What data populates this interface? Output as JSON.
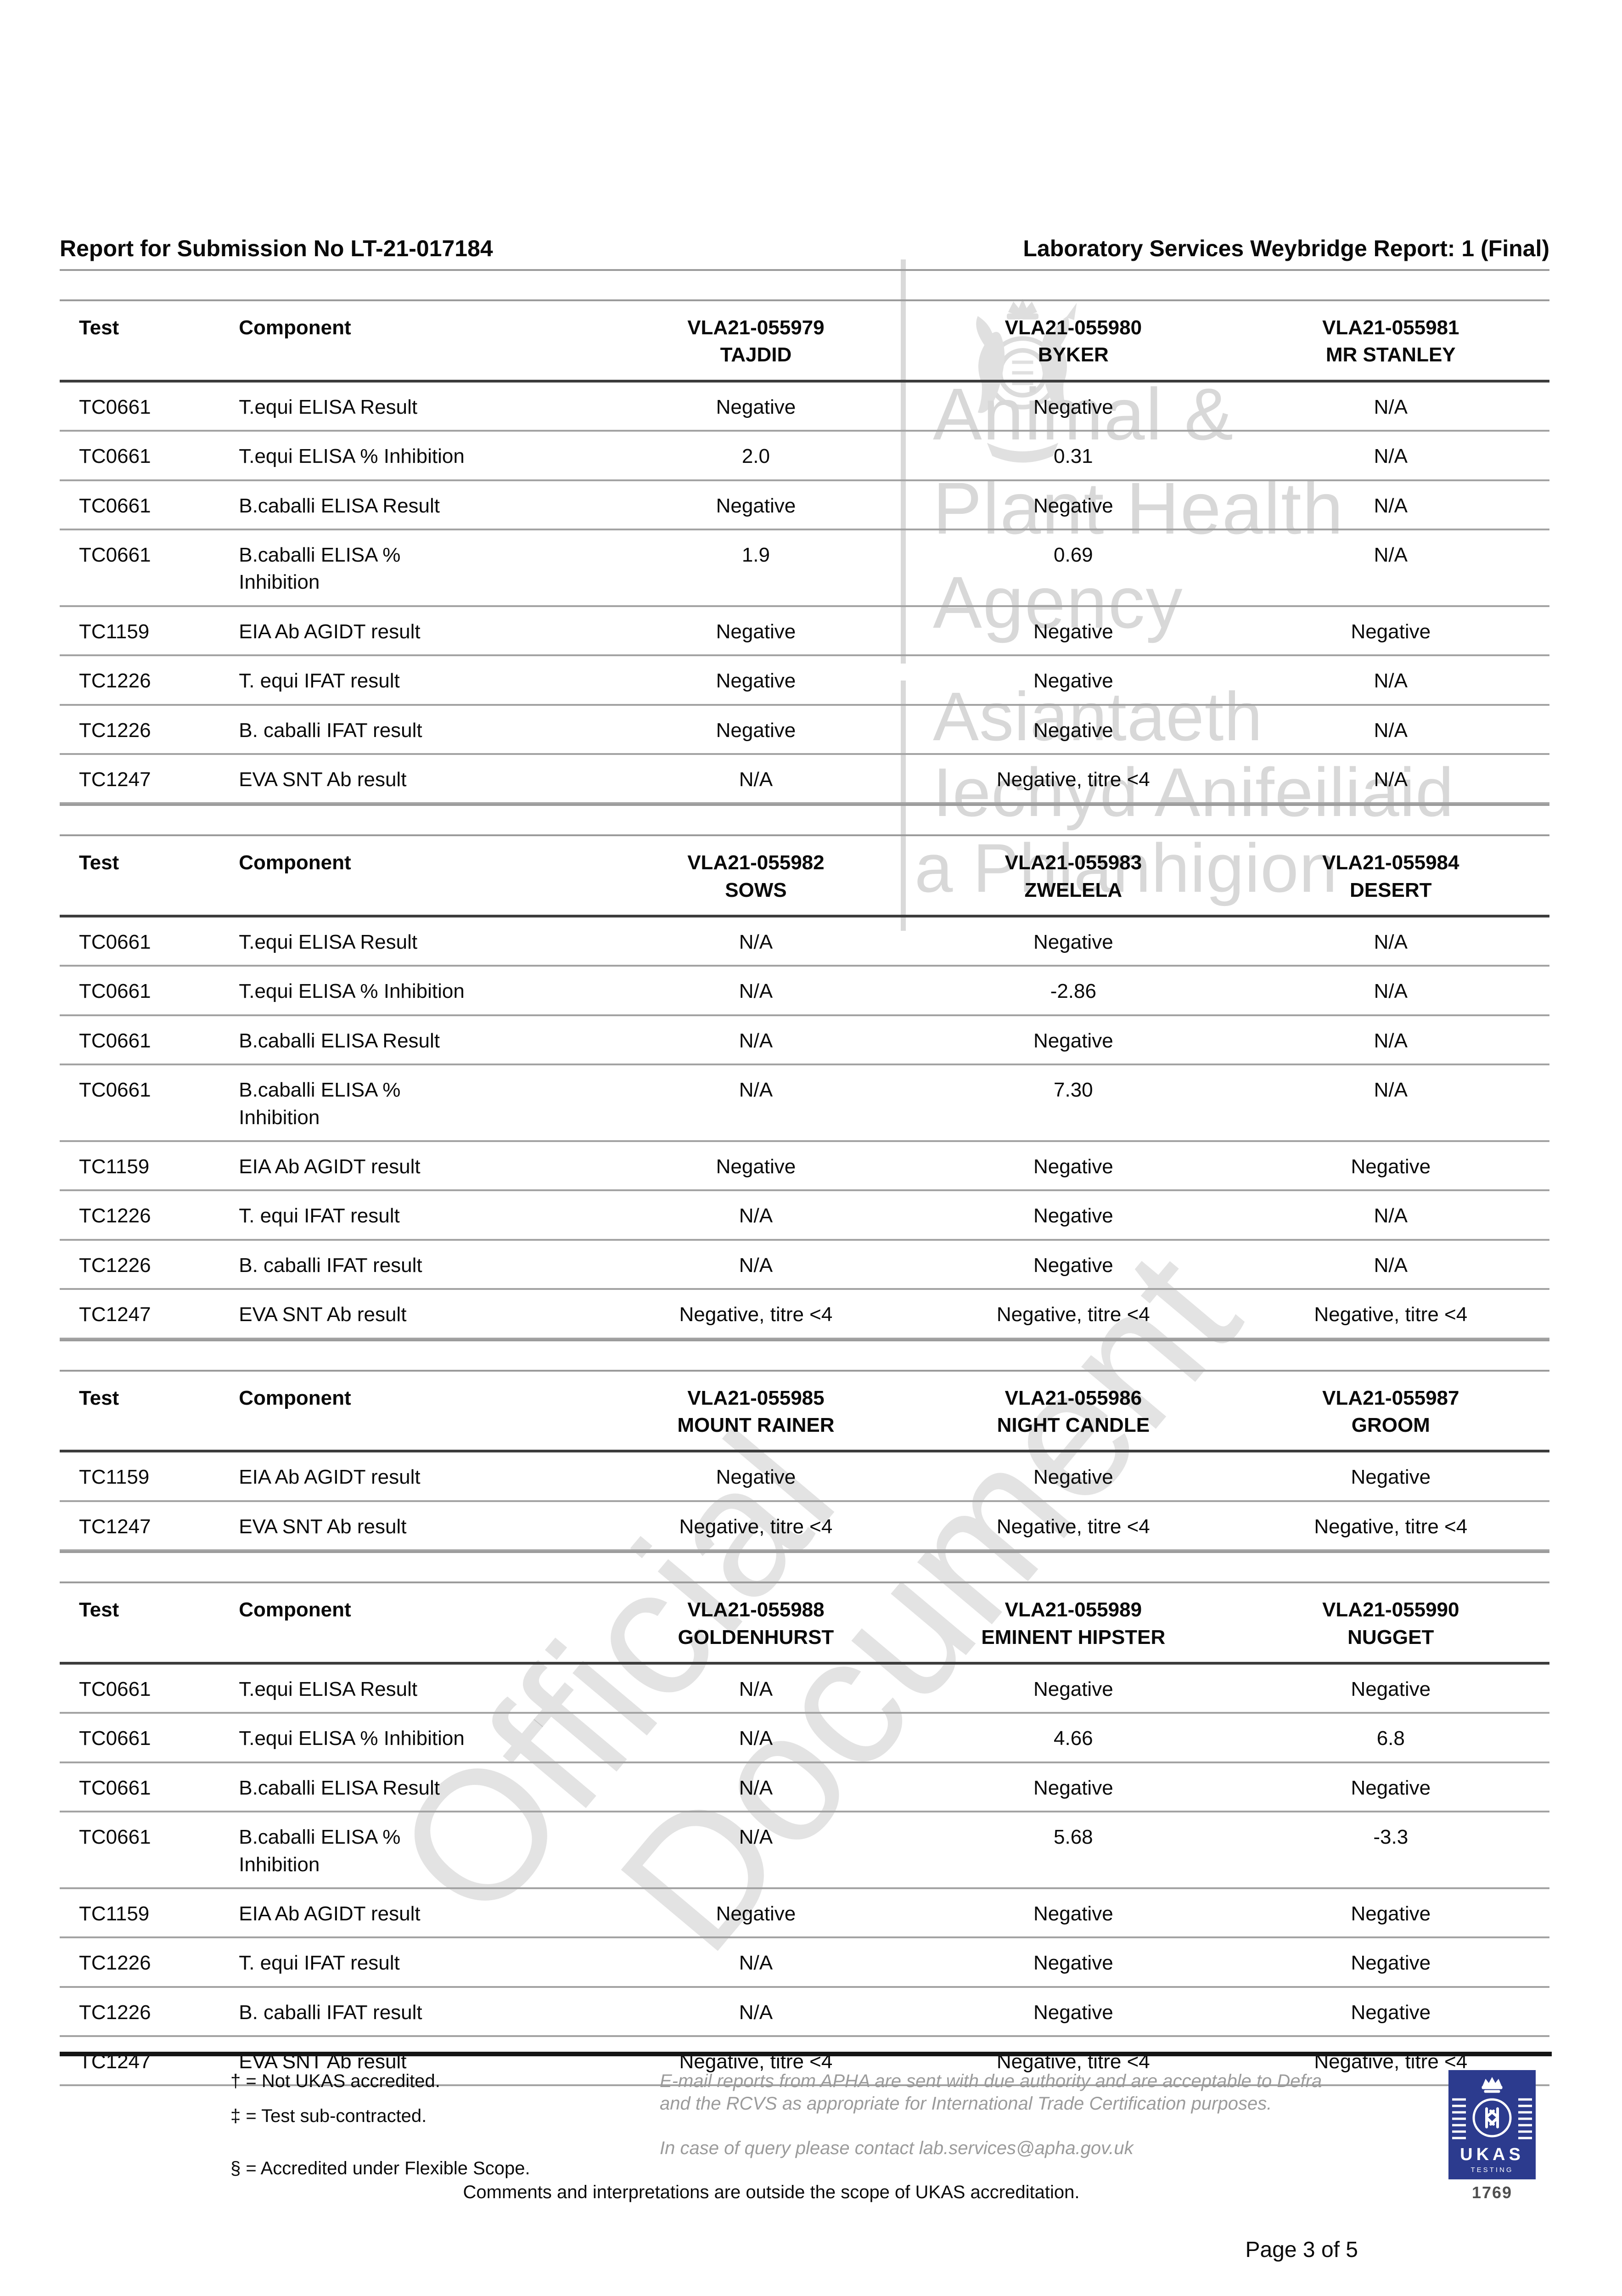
{
  "header": {
    "left": "Report for Submission No LT-21-017184",
    "right": "Laboratory Services Weybridge Report: 1 (Final)"
  },
  "watermarks": {
    "apha_en": [
      "Animal &",
      "Plant Health",
      "Agency"
    ],
    "apha_cy": [
      "Asiantaeth",
      "Iechyd Anifeiliaid",
      "a Phlanhigion"
    ],
    "diagonal": [
      "Official",
      "Document"
    ]
  },
  "tables": [
    {
      "test_label": "Test",
      "component_label": "Component",
      "samples": [
        {
          "id": "VLA21-055979",
          "name": "TAJDID"
        },
        {
          "id": "VLA21-055980",
          "name": "BYKER"
        },
        {
          "id": "VLA21-055981",
          "name": "MR STANLEY"
        }
      ],
      "rows": [
        {
          "test": "TC0661",
          "component": "T.equi ELISA Result",
          "values": [
            "Negative",
            "Negative",
            "N/A"
          ]
        },
        {
          "test": "TC0661",
          "component": "T.equi ELISA % Inhibition",
          "values": [
            "2.0",
            "0.31",
            "N/A"
          ]
        },
        {
          "test": "TC0661",
          "component": "B.caballi ELISA Result",
          "values": [
            "Negative",
            "Negative",
            "N/A"
          ]
        },
        {
          "test": "TC0661",
          "component": "B.caballi ELISA %\nInhibition",
          "values": [
            "1.9",
            "0.69",
            "N/A"
          ]
        },
        {
          "test": "TC1159",
          "component": "EIA Ab AGIDT result",
          "values": [
            "Negative",
            "Negative",
            "Negative"
          ]
        },
        {
          "test": "TC1226",
          "component": "T. equi IFAT result",
          "values": [
            "Negative",
            "Negative",
            "N/A"
          ]
        },
        {
          "test": "TC1226",
          "component": "B. caballi IFAT result",
          "values": [
            "Negative",
            "Negative",
            "N/A"
          ]
        },
        {
          "test": "TC1247",
          "component": "EVA SNT Ab result",
          "values": [
            "N/A",
            "Negative, titre <4",
            "N/A"
          ]
        }
      ]
    },
    {
      "test_label": "Test",
      "component_label": "Component",
      "samples": [
        {
          "id": "VLA21-055982",
          "name": "SOWS"
        },
        {
          "id": "VLA21-055983",
          "name": "ZWELELA"
        },
        {
          "id": "VLA21-055984",
          "name": "DESERT"
        }
      ],
      "rows": [
        {
          "test": "TC0661",
          "component": "T.equi ELISA Result",
          "values": [
            "N/A",
            "Negative",
            "N/A"
          ]
        },
        {
          "test": "TC0661",
          "component": "T.equi ELISA % Inhibition",
          "values": [
            "N/A",
            "-2.86",
            "N/A"
          ]
        },
        {
          "test": "TC0661",
          "component": "B.caballi ELISA Result",
          "values": [
            "N/A",
            "Negative",
            "N/A"
          ]
        },
        {
          "test": "TC0661",
          "component": "B.caballi ELISA %\nInhibition",
          "values": [
            "N/A",
            "7.30",
            "N/A"
          ]
        },
        {
          "test": "TC1159",
          "component": "EIA Ab AGIDT result",
          "values": [
            "Negative",
            "Negative",
            "Negative"
          ]
        },
        {
          "test": "TC1226",
          "component": "T. equi IFAT result",
          "values": [
            "N/A",
            "Negative",
            "N/A"
          ]
        },
        {
          "test": "TC1226",
          "component": "B. caballi IFAT result",
          "values": [
            "N/A",
            "Negative",
            "N/A"
          ]
        },
        {
          "test": "TC1247",
          "component": "EVA SNT Ab result",
          "values": [
            "Negative, titre <4",
            "Negative, titre <4",
            "Negative, titre <4"
          ]
        }
      ]
    },
    {
      "test_label": "Test",
      "component_label": "Component",
      "samples": [
        {
          "id": "VLA21-055985",
          "name": "MOUNT RAINER"
        },
        {
          "id": "VLA21-055986",
          "name": "NIGHT CANDLE"
        },
        {
          "id": "VLA21-055987",
          "name": "GROOM"
        }
      ],
      "rows": [
        {
          "test": "TC1159",
          "component": "EIA Ab AGIDT result",
          "values": [
            "Negative",
            "Negative",
            "Negative"
          ]
        },
        {
          "test": "TC1247",
          "component": "EVA SNT Ab result",
          "values": [
            "Negative, titre <4",
            "Negative, titre <4",
            "Negative, titre <4"
          ]
        }
      ]
    },
    {
      "test_label": "Test",
      "component_label": "Component",
      "samples": [
        {
          "id": "VLA21-055988",
          "name": "GOLDENHURST"
        },
        {
          "id": "VLA21-055989",
          "name": "EMINENT HIPSTER"
        },
        {
          "id": "VLA21-055990",
          "name": "NUGGET"
        }
      ],
      "rows": [
        {
          "test": "TC0661",
          "component": "T.equi ELISA Result",
          "values": [
            "N/A",
            "Negative",
            "Negative"
          ]
        },
        {
          "test": "TC0661",
          "component": "T.equi ELISA % Inhibition",
          "values": [
            "N/A",
            "4.66",
            "6.8"
          ]
        },
        {
          "test": "TC0661",
          "component": "B.caballi ELISA Result",
          "values": [
            "N/A",
            "Negative",
            "Negative"
          ]
        },
        {
          "test": "TC0661",
          "component": "B.caballi ELISA %\nInhibition",
          "values": [
            "N/A",
            "5.68",
            "-3.3"
          ]
        },
        {
          "test": "TC1159",
          "component": "EIA Ab AGIDT result",
          "values": [
            "Negative",
            "Negative",
            "Negative"
          ]
        },
        {
          "test": "TC1226",
          "component": "T. equi IFAT result",
          "values": [
            "N/A",
            "Negative",
            "Negative"
          ]
        },
        {
          "test": "TC1226",
          "component": "B. caballi IFAT result",
          "values": [
            "N/A",
            "Negative",
            "Negative"
          ]
        },
        {
          "test": "TC1247",
          "component": "EVA SNT Ab result",
          "values": [
            "Negative, titre <4",
            "Negative, titre <4",
            "Negative, titre <4"
          ]
        }
      ]
    }
  ],
  "footer": {
    "footnote_dagger": "† = Not UKAS accredited.",
    "footnote_double_dagger": "‡ = Test sub-contracted.",
    "footnote_section": "§ = Accredited under Flexible Scope.",
    "email_note": "E-mail reports from APHA are sent with due authority and are acceptable to Defra and the RCVS as appropriate for International Trade Certification purposes.",
    "query_note": "In case of query please contact lab.services@apha.gov.uk",
    "comments_note": "Comments and interpretations are outside the scope of UKAS accreditation.",
    "ukas": {
      "name": "UKAS",
      "type": "TESTING",
      "number": "1769"
    }
  },
  "page_number": "Page 3 of  5"
}
